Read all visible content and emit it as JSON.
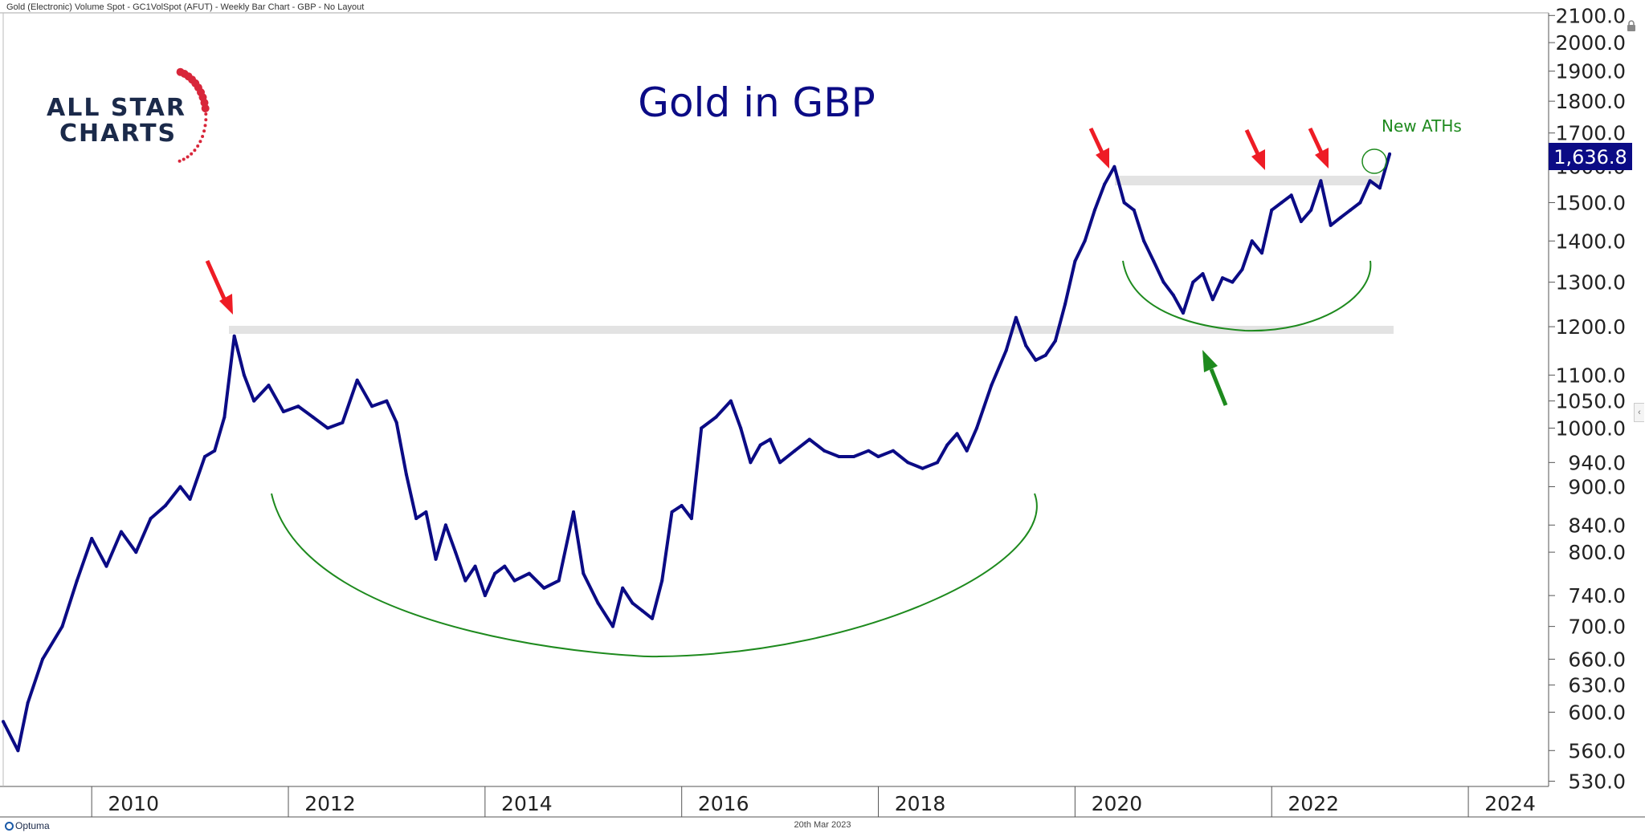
{
  "header": {
    "description": "Gold (Electronic) Volume Spot - GC1VolSpot (AFUT) - Weekly Bar Chart - GBP - No Layout"
  },
  "logo": {
    "line1": "ALL STAR",
    "line2": "CHARTS",
    "accent_color": "#d8263a",
    "text_color": "#1b2a4a"
  },
  "footer": {
    "date": "20th Mar 2023",
    "brand": "Optuma"
  },
  "icons": {
    "lock": "lock-icon",
    "side_tab": "chevron-left-icon"
  },
  "chart_data": {
    "type": "line",
    "title": "Gold in GBP",
    "xlabel": "",
    "ylabel": "",
    "yscale": "log",
    "ylim": [
      525,
      2110
    ],
    "xlim": [
      2009.1,
      2024.8
    ],
    "grid": false,
    "colors": {
      "series": "#0b0b85",
      "title": "#0b0b85",
      "annotation_arrows": "#ee1c25",
      "annotation_curves": "#1e8a1e",
      "resistance_band": "#e3e3e3",
      "last_price_box": "#0b0b85"
    },
    "x_tick_labels": [
      "2010",
      "2012",
      "2014",
      "2016",
      "2018",
      "2020",
      "2022",
      "2024"
    ],
    "x_ticks": [
      2010,
      2012,
      2014,
      2016,
      2018,
      2020,
      2022,
      2024
    ],
    "y_tick_labels": [
      "2100.0",
      "2000.0",
      "1900.0",
      "1800.0",
      "1700.0",
      "1600.0",
      "1500.0",
      "1400.0",
      "1300.0",
      "1200.0",
      "1100.0",
      "1050.0",
      "1000.0",
      "940.0",
      "900.0",
      "840.0",
      "800.0",
      "740.0",
      "700.0",
      "660.0",
      "630.0",
      "600.0",
      "560.0",
      "530.0"
    ],
    "y_ticks": [
      2100,
      2000,
      1900,
      1800,
      1700,
      1600,
      1500,
      1400,
      1300,
      1200,
      1100,
      1050,
      1000,
      940,
      900,
      840,
      800,
      740,
      700,
      660,
      630,
      600,
      560,
      530
    ],
    "last_value_label": "1,636.8",
    "last_value": 1636.8,
    "annotations": [
      {
        "type": "text",
        "text": "New ATHs",
        "x": 2022.9,
        "y": 1780
      }
    ],
    "series": [
      {
        "x": [
          2009.1,
          2009.25,
          2009.35,
          2009.5,
          2009.7,
          2009.85,
          2010.0,
          2010.15,
          2010.3,
          2010.45,
          2010.6,
          2010.75,
          2010.9,
          2011.0,
          2011.15,
          2011.25,
          2011.35,
          2011.45,
          2011.55,
          2011.65,
          2011.8,
          2011.95,
          2012.1,
          2012.25,
          2012.4,
          2012.55,
          2012.7,
          2012.85,
          2013.0,
          2013.1,
          2013.2,
          2013.3,
          2013.4,
          2013.5,
          2013.6,
          2013.7,
          2013.8,
          2013.9,
          2014.0,
          2014.1,
          2014.2,
          2014.3,
          2014.45,
          2014.6,
          2014.75,
          2014.9,
          2015.0,
          2015.15,
          2015.3,
          2015.4,
          2015.5,
          2015.6,
          2015.7,
          2015.8,
          2015.9,
          2016.0,
          2016.1,
          2016.2,
          2016.35,
          2016.5,
          2016.6,
          2016.7,
          2016.8,
          2016.9,
          2017.0,
          2017.15,
          2017.3,
          2017.45,
          2017.6,
          2017.75,
          2017.9,
          2018.0,
          2018.15,
          2018.3,
          2018.45,
          2018.6,
          2018.7,
          2018.8,
          2018.9,
          2019.0,
          2019.15,
          2019.3,
          2019.4,
          2019.5,
          2019.6,
          2019.7,
          2019.8,
          2019.9,
          2020.0,
          2020.1,
          2020.2,
          2020.3,
          2020.4,
          2020.5,
          2020.6,
          2020.7,
          2020.8,
          2020.9,
          2021.0,
          2021.1,
          2021.2,
          2021.3,
          2021.4,
          2021.5,
          2021.6,
          2021.7,
          2021.8,
          2021.9,
          2022.0,
          2022.1,
          2022.2,
          2022.3,
          2022.4,
          2022.5,
          2022.6,
          2022.7,
          2022.8,
          2022.9,
          2023.0,
          2023.1,
          2023.2
        ],
        "values": [
          590,
          560,
          610,
          660,
          700,
          760,
          820,
          780,
          830,
          800,
          850,
          870,
          900,
          880,
          950,
          960,
          1020,
          1180,
          1100,
          1050,
          1080,
          1030,
          1040,
          1020,
          1000,
          1010,
          1090,
          1040,
          1050,
          1010,
          920,
          850,
          860,
          790,
          840,
          800,
          760,
          780,
          740,
          770,
          780,
          760,
          770,
          750,
          760,
          860,
          770,
          730,
          700,
          750,
          730,
          720,
          710,
          760,
          860,
          870,
          850,
          1000,
          1020,
          1050,
          1000,
          940,
          970,
          980,
          940,
          960,
          980,
          960,
          950,
          950,
          960,
          950,
          960,
          940,
          930,
          940,
          970,
          990,
          960,
          1000,
          1080,
          1150,
          1220,
          1160,
          1130,
          1140,
          1170,
          1250,
          1350,
          1400,
          1480,
          1550,
          1600,
          1500,
          1480,
          1400,
          1350,
          1300,
          1270,
          1230,
          1300,
          1320,
          1260,
          1310,
          1300,
          1330,
          1400,
          1370,
          1480,
          1500,
          1520,
          1450,
          1480,
          1560,
          1440,
          1460,
          1480,
          1500,
          1560,
          1540,
          1637
        ]
      }
    ]
  }
}
